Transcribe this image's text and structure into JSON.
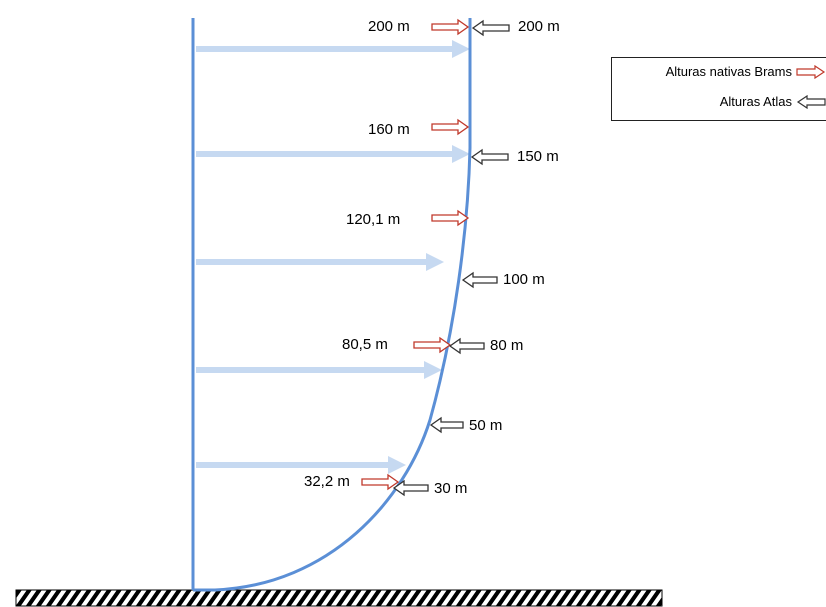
{
  "legend": {
    "brams_label": "Alturas nativas Brams",
    "atlas_label": "Alturas Atlas"
  },
  "colors": {
    "profile": "#5b8fd6",
    "wind_arrow": "#c6d9f1",
    "brams_arrow": "#c0392b",
    "atlas_arrow": "#333333",
    "ground_hatch": "#000000"
  },
  "brams_heights": [
    {
      "label": "200 m"
    },
    {
      "label": "160 m"
    },
    {
      "label": "120,1 m"
    },
    {
      "label": "80,5 m"
    },
    {
      "label": "32,2 m"
    }
  ],
  "atlas_heights": [
    {
      "label": "200 m"
    },
    {
      "label": "150 m"
    },
    {
      "label": "100 m"
    },
    {
      "label": "80 m"
    },
    {
      "label": "50 m"
    },
    {
      "label": "30 m"
    }
  ]
}
